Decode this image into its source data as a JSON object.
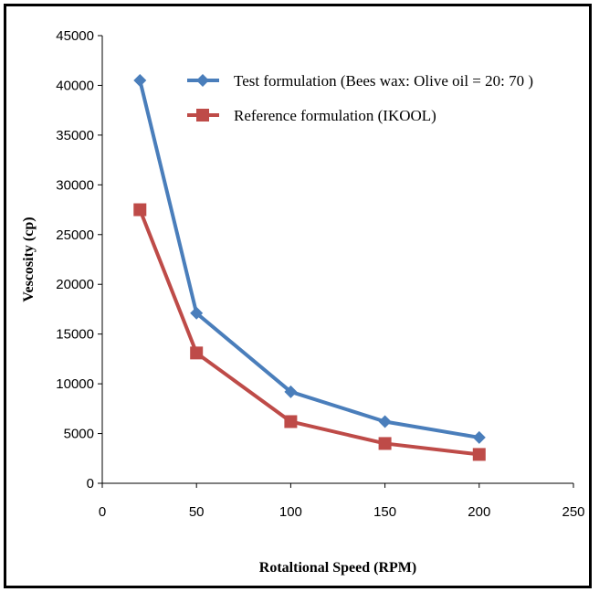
{
  "chart_data": {
    "type": "line",
    "title": "",
    "xlabel": "Rotaltional Speed (RPM)",
    "ylabel": "Vescosity (cp)",
    "xlim": [
      0,
      250
    ],
    "ylim": [
      0,
      45000
    ],
    "x_ticks": [
      "0",
      "50",
      "100",
      "150",
      "200",
      "250"
    ],
    "y_ticks": [
      "0",
      "5000",
      "10000",
      "15000",
      "20000",
      "25000",
      "30000",
      "35000",
      "40000",
      "45000"
    ],
    "grid": false,
    "legend_position": "top-right",
    "series": [
      {
        "name": "Test formulation (Bees wax: Olive oil = 20: 70 )",
        "color": "#4a7ebb",
        "marker": "diamond",
        "x": [
          20,
          50,
          100,
          150,
          200
        ],
        "y": [
          40500,
          17100,
          9200,
          6200,
          4600
        ]
      },
      {
        "name": "Reference formulation (IKOOL)",
        "color": "#be4b48",
        "marker": "square",
        "x": [
          20,
          50,
          100,
          150,
          200
        ],
        "y": [
          27500,
          13100,
          6200,
          4000,
          2900
        ]
      }
    ]
  }
}
